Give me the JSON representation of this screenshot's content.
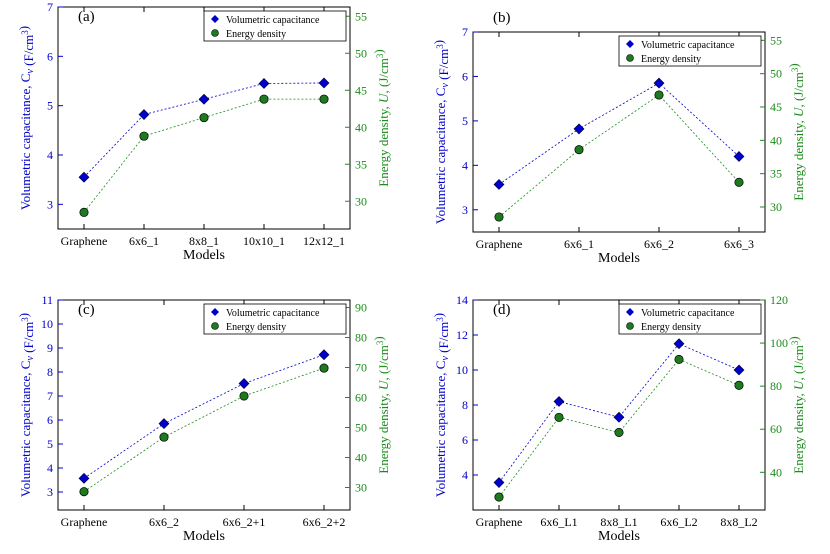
{
  "figure": {
    "ylabel_left": "Volumetric capacitance, C_v (F/cm^3)",
    "ylabel_right": "Energy density, U, (J/cm^3)",
    "xlabel": "Models",
    "legend": [
      "Volumetric capacitance",
      "Energy density"
    ],
    "colors": {
      "capacitance": "#0000cc",
      "energy": "#1a8c1a",
      "energy_marker": "#1e7a1e"
    }
  },
  "chart_data": [
    {
      "type": "line",
      "panel": "(a)",
      "categories": [
        "Graphene",
        "6x6_1",
        "8x8_1",
        "10x10_1",
        "12x12_1"
      ],
      "series": [
        {
          "name": "Volumetric capacitance",
          "axis": "left",
          "values": [
            3.55,
            4.82,
            5.13,
            5.45,
            5.46
          ]
        },
        {
          "name": "Energy density",
          "axis": "right",
          "values": [
            28.5,
            38.8,
            41.3,
            43.8,
            43.8
          ]
        }
      ],
      "ylim_left": [
        2.5,
        7.0
      ],
      "yticks_left": [
        3,
        4,
        5,
        6,
        7
      ],
      "ylim_right": [
        26.25,
        56.25
      ],
      "yticks_right": [
        30,
        35,
        40,
        45,
        50,
        55
      ],
      "xlabel": "Models",
      "legend_position": "top-right"
    },
    {
      "type": "line",
      "panel": "(b)",
      "categories": [
        "Graphene",
        "6x6_1",
        "6x6_2",
        "6x6_3"
      ],
      "series": [
        {
          "name": "Volumetric capacitance",
          "axis": "left",
          "values": [
            3.57,
            4.82,
            5.85,
            4.2
          ]
        },
        {
          "name": "Energy density",
          "axis": "right",
          "values": [
            28.5,
            38.6,
            46.8,
            33.7
          ]
        }
      ],
      "ylim_left": [
        2.5,
        7.0
      ],
      "yticks_left": [
        3,
        4,
        5,
        6,
        7
      ],
      "ylim_right": [
        26.25,
        56.25
      ],
      "yticks_right": [
        30,
        35,
        40,
        45,
        50,
        55
      ],
      "xlabel": "Models",
      "legend_position": "top-right"
    },
    {
      "type": "line",
      "panel": "(c)",
      "categories": [
        "Graphene",
        "6x6_2",
        "6x6_2+1",
        "6x6_2+2"
      ],
      "series": [
        {
          "name": "Volumetric capacitance",
          "axis": "left",
          "values": [
            3.57,
            5.85,
            7.52,
            8.72
          ]
        },
        {
          "name": "Energy density",
          "axis": "right",
          "values": [
            28.6,
            46.8,
            60.5,
            69.8
          ]
        }
      ],
      "ylim_left": [
        2.25,
        11.0
      ],
      "yticks_left": [
        3,
        4,
        5,
        6,
        7,
        8,
        9,
        10,
        11
      ],
      "ylim_right": [
        22.5,
        92.5
      ],
      "yticks_right": [
        30,
        40,
        50,
        60,
        70,
        80,
        90
      ],
      "xlabel": "Models",
      "legend_position": "top-right"
    },
    {
      "type": "line",
      "panel": "(d)",
      "categories": [
        "Graphene",
        "6x6_L1",
        "8x8_L1",
        "6x6_L2",
        "8x8_L2"
      ],
      "series": [
        {
          "name": "Volumetric capacitance",
          "axis": "left",
          "values": [
            3.57,
            8.2,
            7.3,
            11.5,
            10.0
          ]
        },
        {
          "name": "Energy density",
          "axis": "right",
          "values": [
            28.5,
            65.5,
            58.5,
            92.4,
            80.4
          ]
        }
      ],
      "ylim_left": [
        2.0,
        14.0
      ],
      "yticks_left": [
        4,
        6,
        8,
        10,
        12,
        14
      ],
      "ylim_right": [
        22.5,
        120.0
      ],
      "yticks_right": [
        40,
        60,
        80,
        100,
        120
      ],
      "xlabel": "Models",
      "legend_position": "top-right"
    }
  ]
}
